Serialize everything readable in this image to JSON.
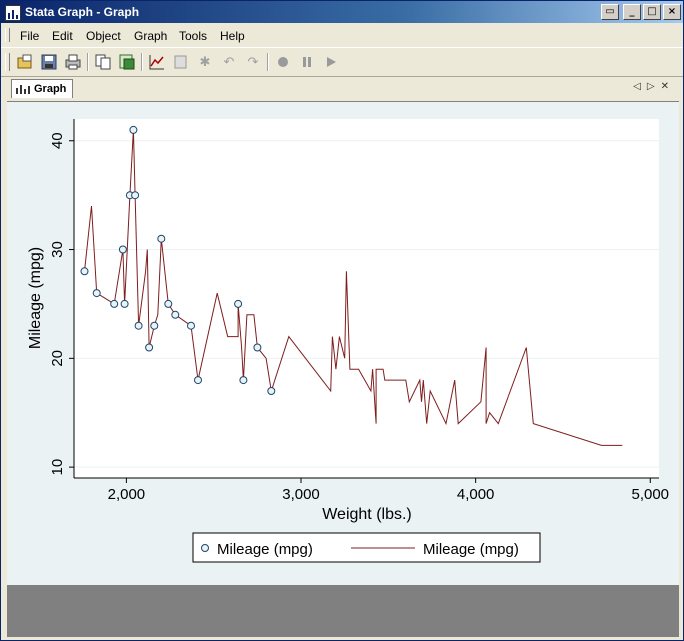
{
  "window": {
    "title": "Stata Graph - Graph"
  },
  "titlebar_buttons": [
    "restore-icon",
    "minimize-icon",
    "maximize-icon",
    "close-icon"
  ],
  "menu": [
    {
      "label": "File"
    },
    {
      "label": "Edit"
    },
    {
      "label": "Object"
    },
    {
      "label": "Graph"
    },
    {
      "label": "Tools"
    },
    {
      "label": "Help"
    }
  ],
  "toolbar": [
    "open-icon",
    "save-icon",
    "print-icon",
    "copy-icon",
    "rename-icon",
    "graph-editor-icon",
    "pointer-icon",
    "add-text-icon",
    "undo-icon",
    "redo-icon",
    "record-icon",
    "pause-icon",
    "play-icon"
  ],
  "tab": {
    "label": "Graph"
  },
  "colors": {
    "line": "#7f1d1d",
    "marker": "#1a476f",
    "plot_bg": "#ffffff",
    "graph_bg": "#eaf2f3"
  },
  "chart_data": {
    "type": "scatter",
    "xlabel": "Weight (lbs.)",
    "ylabel": "Mileage (mpg)",
    "xlim": [
      1700,
      5050
    ],
    "ylim": [
      9,
      42
    ],
    "xticks": [
      2000,
      3000,
      4000,
      5000
    ],
    "xtick_labels": [
      "2,000",
      "3,000",
      "4,000",
      "5,000"
    ],
    "yticks": [
      10,
      20,
      30,
      40
    ],
    "ytick_labels": [
      "10",
      "20",
      "30",
      "40"
    ],
    "grid": true,
    "legend": {
      "position": "bottom",
      "entries": [
        "Mileage (mpg)",
        "Mileage (mpg)"
      ]
    },
    "series": [
      {
        "name": "Mileage (mpg)",
        "type": "scatter",
        "points": [
          [
            1760,
            28
          ],
          [
            1830,
            26
          ],
          [
            1930,
            25
          ],
          [
            1980,
            30
          ],
          [
            1990,
            25
          ],
          [
            2020,
            35
          ],
          [
            2040,
            41
          ],
          [
            2050,
            35
          ],
          [
            2070,
            23
          ],
          [
            2130,
            21
          ],
          [
            2160,
            23
          ],
          [
            2200,
            31
          ],
          [
            2240,
            25
          ],
          [
            2280,
            24
          ],
          [
            2370,
            23
          ],
          [
            2410,
            18
          ],
          [
            2640,
            25
          ],
          [
            2670,
            18
          ],
          [
            2750,
            21
          ],
          [
            2830,
            17
          ]
        ]
      },
      {
        "name": "Mileage (mpg)",
        "type": "line",
        "points": [
          [
            1760,
            28
          ],
          [
            1800,
            34
          ],
          [
            1830,
            26
          ],
          [
            1930,
            25
          ],
          [
            1980,
            30
          ],
          [
            1990,
            25
          ],
          [
            2020,
            35
          ],
          [
            2040,
            41
          ],
          [
            2050,
            35
          ],
          [
            2070,
            23
          ],
          [
            2110,
            28
          ],
          [
            2120,
            30
          ],
          [
            2130,
            21
          ],
          [
            2160,
            23
          ],
          [
            2180,
            24
          ],
          [
            2200,
            31
          ],
          [
            2240,
            25
          ],
          [
            2280,
            24
          ],
          [
            2370,
            23
          ],
          [
            2410,
            18
          ],
          [
            2520,
            26
          ],
          [
            2580,
            22
          ],
          [
            2640,
            22
          ],
          [
            2640,
            25
          ],
          [
            2660,
            21
          ],
          [
            2670,
            18
          ],
          [
            2690,
            24
          ],
          [
            2730,
            24
          ],
          [
            2750,
            21
          ],
          [
            2800,
            20
          ],
          [
            2830,
            17
          ],
          [
            2930,
            22
          ],
          [
            3170,
            17
          ],
          [
            3180,
            22
          ],
          [
            3200,
            19
          ],
          [
            3220,
            22
          ],
          [
            3250,
            20
          ],
          [
            3260,
            28
          ],
          [
            3280,
            19
          ],
          [
            3330,
            19
          ],
          [
            3400,
            17
          ],
          [
            3410,
            19
          ],
          [
            3430,
            14
          ],
          [
            3430,
            19
          ],
          [
            3470,
            19
          ],
          [
            3480,
            18
          ],
          [
            3600,
            18
          ],
          [
            3620,
            16
          ],
          [
            3680,
            18
          ],
          [
            3690,
            16
          ],
          [
            3700,
            18
          ],
          [
            3720,
            14
          ],
          [
            3740,
            17
          ],
          [
            3830,
            14
          ],
          [
            3880,
            18
          ],
          [
            3900,
            14
          ],
          [
            4030,
            16
          ],
          [
            4060,
            21
          ],
          [
            4060,
            14
          ],
          [
            4080,
            15
          ],
          [
            4130,
            14
          ],
          [
            4290,
            21
          ],
          [
            4330,
            14
          ],
          [
            4720,
            12
          ],
          [
            4840,
            12
          ]
        ]
      }
    ]
  }
}
